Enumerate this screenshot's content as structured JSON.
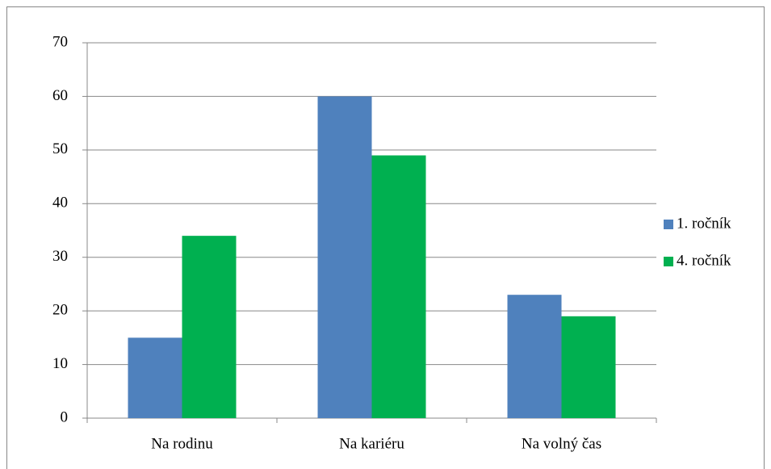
{
  "chart_data": {
    "type": "bar",
    "categories": [
      "Na rodinu",
      "Na kariéru",
      "Na volný čas"
    ],
    "series": [
      {
        "name": "1. ročník",
        "color": "#4f81bd",
        "values": [
          15,
          60,
          23
        ]
      },
      {
        "name": "4. ročník",
        "color": "#00b050",
        "values": [
          34,
          49,
          19
        ]
      }
    ],
    "ylim": [
      0,
      70
    ],
    "yticks": [
      0,
      10,
      20,
      30,
      40,
      50,
      60,
      70
    ],
    "grid": true,
    "legend": "right"
  }
}
